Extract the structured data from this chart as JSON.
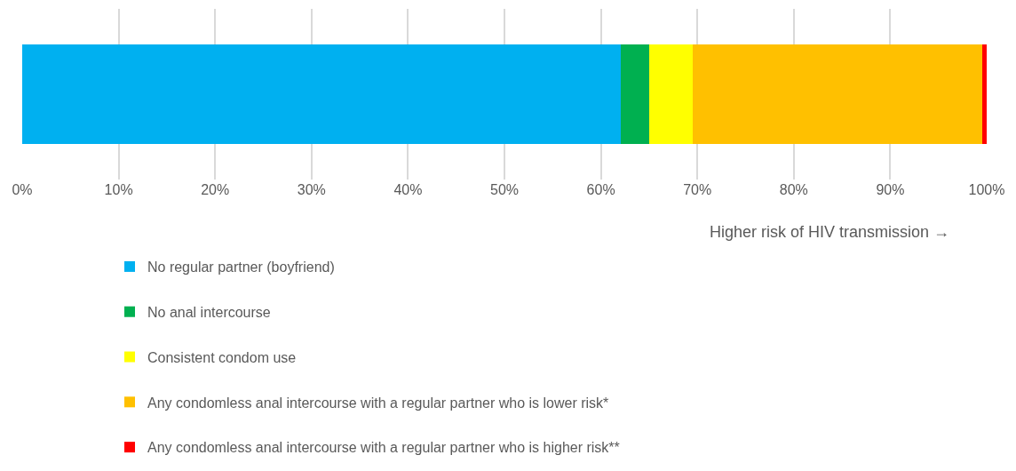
{
  "chart_data": {
    "type": "bar",
    "orientation": "horizontal",
    "stacked": true,
    "categories": [
      null
    ],
    "series": [
      {
        "name": "No regular partner (boyfriend)",
        "color": "#00b0f0",
        "values": [
          62.1
        ]
      },
      {
        "name": "No anal intercourse",
        "color": "#00b050",
        "values": [
          2.9
        ]
      },
      {
        "name": "Consistent condom use",
        "color": "#ffff00",
        "values": [
          4.5
        ]
      },
      {
        "name": "Any condomless anal intercourse with a regular partner who is lower risk*",
        "color": "#ffc000",
        "values": [
          30.0
        ]
      },
      {
        "name": "Any condomless anal intercourse with a regular partner who is higher risk**",
        "color": "#ff0000",
        "values": [
          0.5
        ]
      }
    ],
    "xlim": [
      0,
      100
    ],
    "xticks": [
      {
        "value": 0,
        "label": "0%"
      },
      {
        "value": 10,
        "label": "10%"
      },
      {
        "value": 20,
        "label": "20%"
      },
      {
        "value": 30,
        "label": "30%"
      },
      {
        "value": 40,
        "label": "40%"
      },
      {
        "value": 50,
        "label": "50%"
      },
      {
        "value": 60,
        "label": "60%"
      },
      {
        "value": 70,
        "label": "70%"
      },
      {
        "value": 80,
        "label": "80%"
      },
      {
        "value": 90,
        "label": "90%"
      },
      {
        "value": 100,
        "label": "100%"
      }
    ],
    "xlabel": "Higher risk of HIV transmission →",
    "grid": "x",
    "legend": "bottom"
  }
}
